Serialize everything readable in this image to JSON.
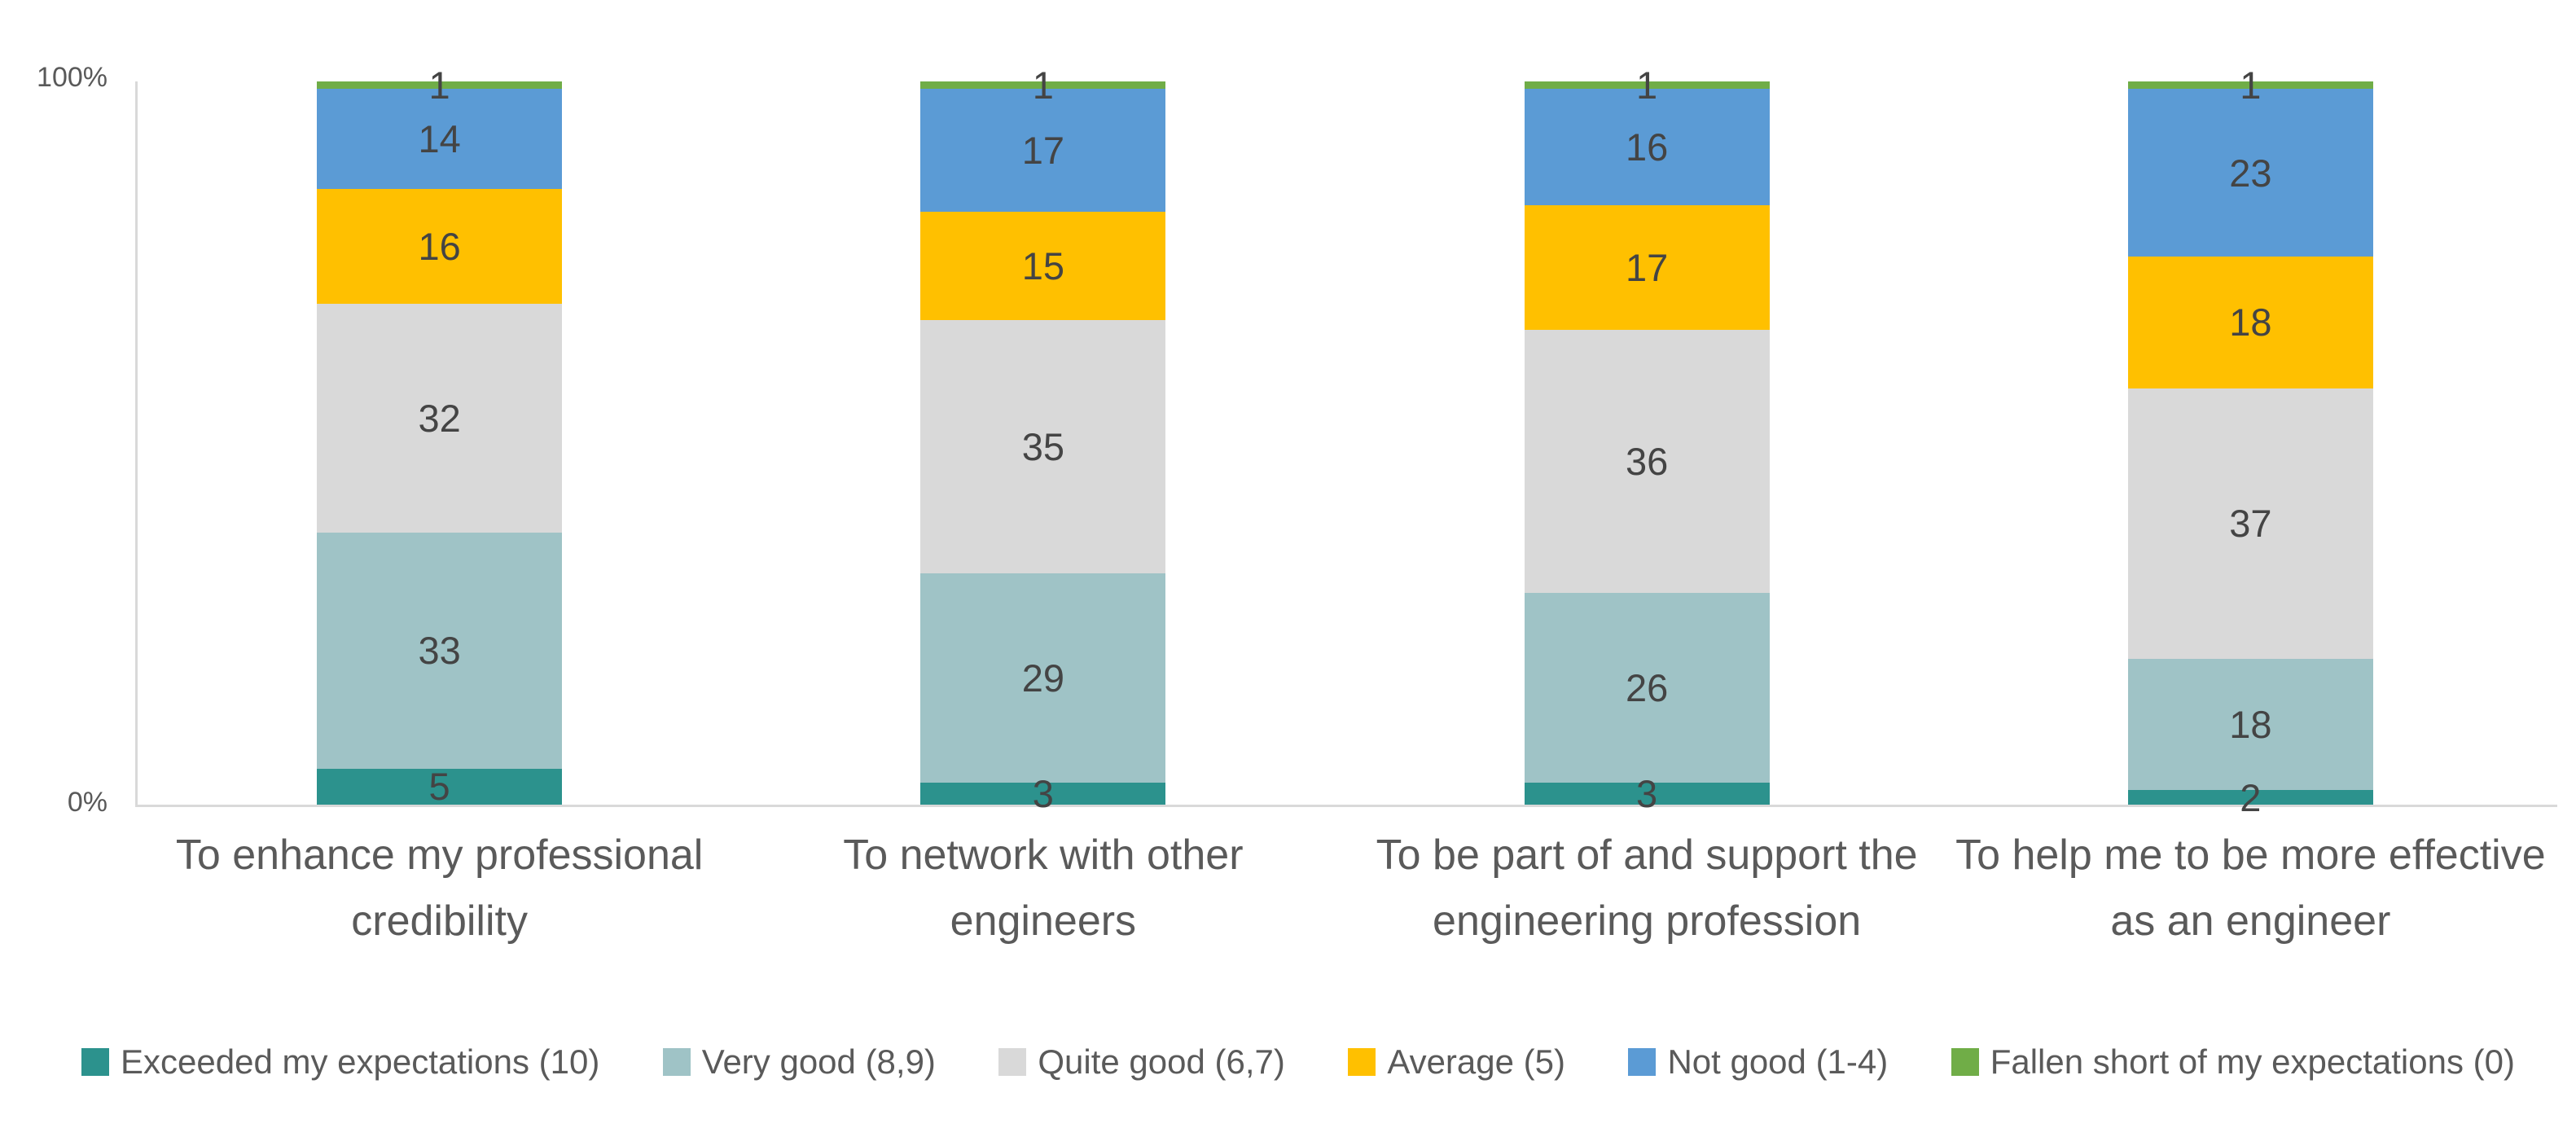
{
  "chart_data": {
    "type": "bar",
    "variant": "stacked-column-percent",
    "title": "",
    "categories": [
      "To enhance my professional credibility",
      "To network with other engineers",
      "To be part of and support the engineering profession",
      "To help me to be more effective as an engineer"
    ],
    "series": [
      {
        "name": "Exceeded my expectations (10)",
        "color": "#2C928D",
        "values": [
          5,
          3,
          3,
          2
        ]
      },
      {
        "name": "Very good (8,9)",
        "color": "#9FC3C6",
        "values": [
          33,
          29,
          26,
          18
        ]
      },
      {
        "name": "Quite good (6,7)",
        "color": "#D9D9D9",
        "values": [
          32,
          35,
          36,
          37
        ]
      },
      {
        "name": "Average (5)",
        "color": "#FFC000",
        "values": [
          16,
          15,
          17,
          18
        ]
      },
      {
        "name": "Not good (1-4)",
        "color": "#5B9BD5",
        "values": [
          14,
          17,
          16,
          23
        ]
      },
      {
        "name": "Fallen short of my expectations (0)",
        "color": "#70AD47",
        "values": [
          1,
          1,
          1,
          1
        ]
      }
    ],
    "yaxis": {
      "max_label": "100%",
      "min_label": "0%",
      "ylim": [
        0,
        100
      ],
      "unit": "percent"
    },
    "legend_position": "bottom",
    "grid": false,
    "data_labels": true,
    "text_colors": {
      "value_label": "#444444",
      "axis_label": "#595959",
      "category_label": "#5A5A5A",
      "legend_label": "#5A5A5A"
    },
    "axis_line_color": "#D9D9D9"
  }
}
